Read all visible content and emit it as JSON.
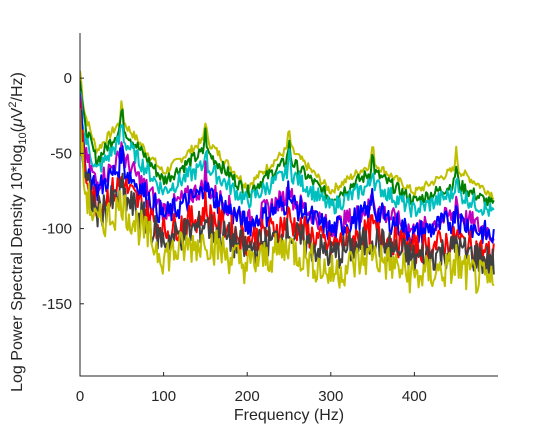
{
  "chart_data": {
    "type": "line",
    "title": "",
    "xlabel": "Frequency (Hz)",
    "ylabel": "Log Power Spectral Density 10*log",
    "ylabel_sub": "10",
    "ylabel_units_open": "(",
    "ylabel_mu": "μ",
    "ylabel_units_mid": "V",
    "ylabel_sup": "2",
    "ylabel_units_close": "/Hz)",
    "xlim": [
      0,
      500
    ],
    "ylim": [
      -198,
      30
    ],
    "xticks": [
      0,
      100,
      200,
      300,
      400
    ],
    "xtick_labels": [
      "0",
      "100",
      "200",
      "300",
      "400"
    ],
    "yticks": [
      0,
      -50,
      -100,
      -150
    ],
    "ytick_labels": [
      "0",
      "-50",
      "-100",
      "-150"
    ],
    "grid": false,
    "legend": "none",
    "line_noise_peaks_hz": [
      50,
      150,
      250,
      350,
      450
    ],
    "series": [
      {
        "color": "#bfbf00",
        "values": [
          [
            0,
            5
          ],
          [
            5,
            -22
          ],
          [
            20,
            -48
          ],
          [
            50,
            -28
          ],
          [
            100,
            -63
          ],
          [
            150,
            -40
          ],
          [
            200,
            -72
          ],
          [
            250,
            -46
          ],
          [
            300,
            -75
          ],
          [
            350,
            -56
          ],
          [
            400,
            -76
          ],
          [
            450,
            -60
          ],
          [
            495,
            -78
          ]
        ]
      },
      {
        "color": "#007f00",
        "values": [
          [
            0,
            0
          ],
          [
            5,
            -30
          ],
          [
            20,
            -55
          ],
          [
            50,
            -32
          ],
          [
            100,
            -68
          ],
          [
            150,
            -48
          ],
          [
            200,
            -76
          ],
          [
            250,
            -54
          ],
          [
            300,
            -80
          ],
          [
            350,
            -62
          ],
          [
            400,
            -82
          ],
          [
            450,
            -70
          ],
          [
            495,
            -85
          ]
        ]
      },
      {
        "color": "#00bfbf",
        "values": [
          [
            0,
            -5
          ],
          [
            5,
            -38
          ],
          [
            20,
            -62
          ],
          [
            50,
            -40
          ],
          [
            100,
            -75
          ],
          [
            150,
            -58
          ],
          [
            200,
            -82
          ],
          [
            250,
            -62
          ],
          [
            300,
            -86
          ],
          [
            350,
            -70
          ],
          [
            400,
            -88
          ],
          [
            450,
            -76
          ],
          [
            495,
            -90
          ]
        ]
      },
      {
        "color": "#bf00bf",
        "values": [
          [
            0,
            -15
          ],
          [
            5,
            -50
          ],
          [
            20,
            -70
          ],
          [
            50,
            -52
          ],
          [
            100,
            -88
          ],
          [
            150,
            -72
          ],
          [
            200,
            -95
          ],
          [
            250,
            -78
          ],
          [
            300,
            -100
          ],
          [
            350,
            -85
          ],
          [
            400,
            -102
          ],
          [
            450,
            -90
          ],
          [
            495,
            -104
          ]
        ]
      },
      {
        "color": "#0000ff",
        "values": [
          [
            0,
            -18
          ],
          [
            5,
            -55
          ],
          [
            20,
            -75
          ],
          [
            50,
            -58
          ],
          [
            100,
            -92
          ],
          [
            150,
            -75
          ],
          [
            200,
            -98
          ],
          [
            250,
            -82
          ],
          [
            300,
            -102
          ],
          [
            350,
            -88
          ],
          [
            400,
            -104
          ],
          [
            450,
            -94
          ],
          [
            495,
            -106
          ]
        ]
      },
      {
        "color": "#ff0000",
        "values": [
          [
            0,
            -20
          ],
          [
            5,
            -60
          ],
          [
            20,
            -85
          ],
          [
            50,
            -70
          ],
          [
            100,
            -102
          ],
          [
            150,
            -90
          ],
          [
            200,
            -108
          ],
          [
            250,
            -96
          ],
          [
            300,
            -112
          ],
          [
            350,
            -102
          ],
          [
            400,
            -114
          ],
          [
            450,
            -108
          ],
          [
            495,
            -118
          ]
        ]
      },
      {
        "color": "#404040",
        "values": [
          [
            0,
            -25
          ],
          [
            5,
            -65
          ],
          [
            20,
            -90
          ],
          [
            50,
            -78
          ],
          [
            100,
            -108
          ],
          [
            150,
            -98
          ],
          [
            200,
            -114
          ],
          [
            250,
            -104
          ],
          [
            300,
            -118
          ],
          [
            350,
            -108
          ],
          [
            400,
            -120
          ],
          [
            450,
            -114
          ],
          [
            495,
            -123
          ]
        ]
      },
      {
        "color": "#bfbf00",
        "values": [
          [
            0,
            -30
          ],
          [
            5,
            -72
          ],
          [
            20,
            -98
          ],
          [
            50,
            -85
          ],
          [
            100,
            -118
          ],
          [
            150,
            -108
          ],
          [
            200,
            -125
          ],
          [
            250,
            -112
          ],
          [
            300,
            -130
          ],
          [
            350,
            -118
          ],
          [
            400,
            -132
          ],
          [
            450,
            -126
          ],
          [
            495,
            -138
          ]
        ]
      }
    ]
  }
}
